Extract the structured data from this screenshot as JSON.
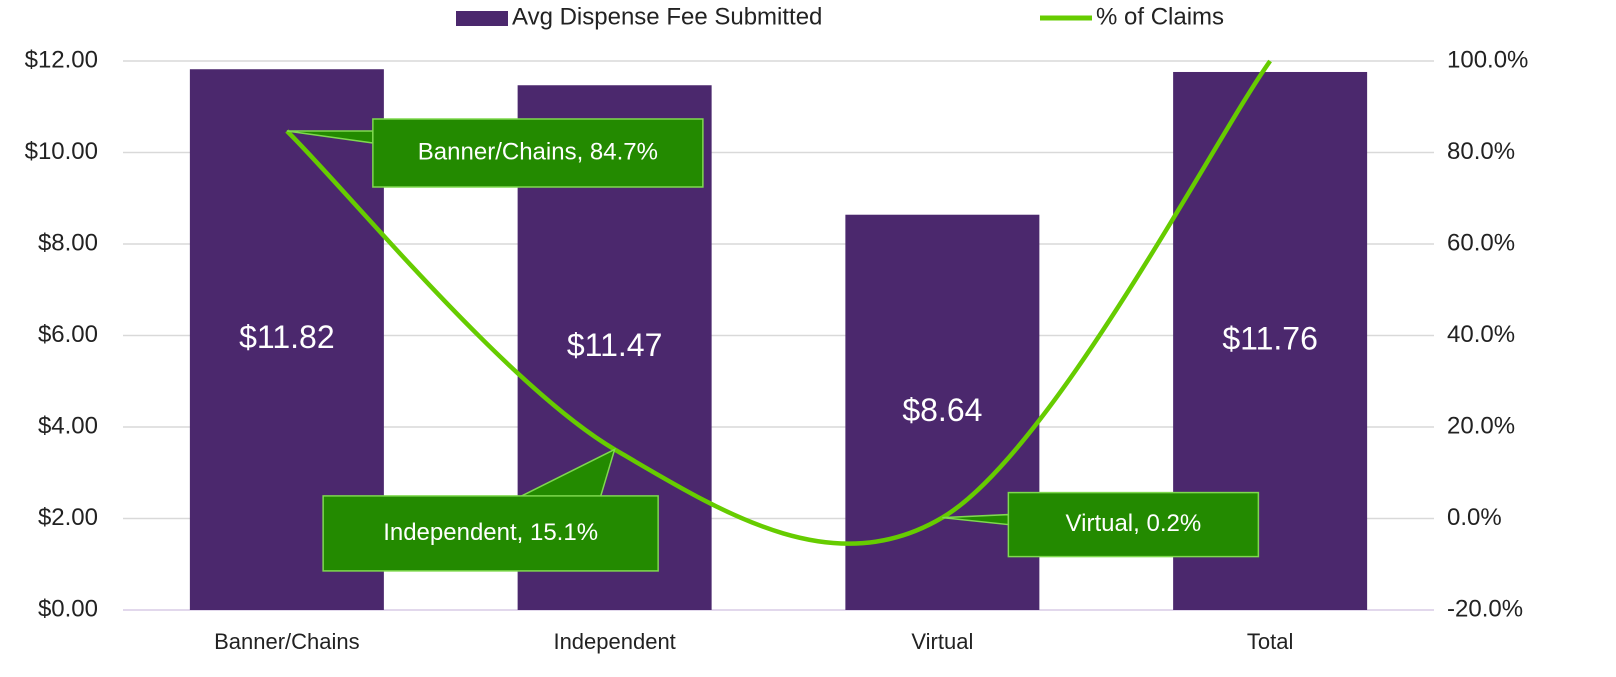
{
  "chart_data": {
    "type": "bar-line",
    "categories": [
      "Banner/Chains",
      "Independent",
      "Virtual",
      "Total"
    ],
    "series": [
      {
        "name": "Avg Dispense Fee Submitted",
        "type": "bar",
        "color": "#4b286d",
        "values": [
          11.82,
          11.47,
          8.64,
          11.76
        ],
        "value_labels": [
          "$11.82",
          "$11.47",
          "$8.64",
          "$11.76"
        ]
      },
      {
        "name": "% of Claims",
        "type": "line",
        "axis": "y2",
        "color": "#66cc00",
        "smooth": true,
        "values": [
          84.7,
          15.1,
          0.2,
          100
        ],
        "value_labels": [
          "Banner/Chains, 84.7%",
          "Independent, 15.1%",
          "Virtual, 0.2%",
          null
        ]
      }
    ],
    "ylim": [
      0,
      12
    ],
    "yticks": [
      {
        "value": 0,
        "label": "$0.00"
      },
      {
        "value": 2,
        "label": "$2.00"
      },
      {
        "value": 4,
        "label": "$4.00"
      },
      {
        "value": 6,
        "label": "$6.00"
      },
      {
        "value": 8,
        "label": "$8.00"
      },
      {
        "value": 10,
        "label": "$10.00"
      },
      {
        "value": 12,
        "label": "$12.00"
      }
    ],
    "y2lim": [
      -20,
      100
    ],
    "y2ticks": [
      {
        "value": -20,
        "label": "-20.0%"
      },
      {
        "value": 0,
        "label": "0.0%"
      },
      {
        "value": 20,
        "label": "20.0%"
      },
      {
        "value": 40,
        "label": "40.0%"
      },
      {
        "value": 60,
        "label": "60.0%"
      },
      {
        "value": 80,
        "label": "80.0%"
      },
      {
        "value": 100,
        "label": "100.0%"
      }
    ],
    "grid": true,
    "legend": "top"
  }
}
